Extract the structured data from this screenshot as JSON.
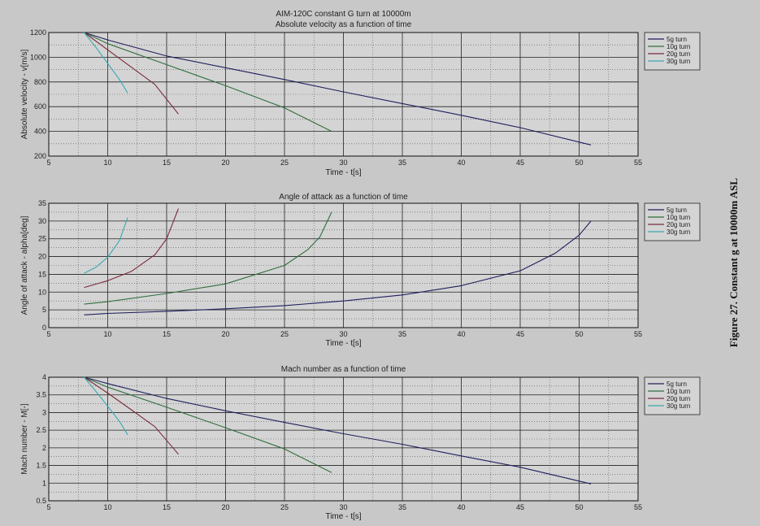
{
  "caption": "Figure 27. Constant g at 10000m ASL",
  "colors": {
    "background": "#c8c8c8",
    "series": [
      "#1f1f5f",
      "#2f6f3f",
      "#7a2a3a",
      "#3aa8b0"
    ]
  },
  "chart_data": [
    {
      "type": "line",
      "title": "AIM-120C constant G turn at 10000m",
      "subtitle": "Absolute velocity as a function of time",
      "xlabel": "Time - t[s]",
      "ylabel": "Absolute velocity - v[m/s]",
      "xlim": [
        5,
        55
      ],
      "ylim": [
        200,
        1200
      ],
      "xticks": [
        5,
        10,
        15,
        20,
        25,
        30,
        35,
        40,
        45,
        50,
        55
      ],
      "yticks": [
        200,
        400,
        600,
        800,
        1000,
        1200
      ],
      "grid": true,
      "legend_position": "outside-right",
      "series": [
        {
          "name": "5g turn",
          "x": [
            8,
            10,
            15,
            20,
            25,
            30,
            35,
            40,
            45,
            51
          ],
          "y": [
            1200,
            1140,
            1010,
            915,
            820,
            720,
            625,
            530,
            430,
            290
          ]
        },
        {
          "name": "10g turn",
          "x": [
            8,
            10,
            15,
            20,
            25,
            29
          ],
          "y": [
            1200,
            1110,
            940,
            770,
            590,
            400
          ]
        },
        {
          "name": "20g turn",
          "x": [
            8,
            10,
            12,
            14,
            16
          ],
          "y": [
            1200,
            1060,
            920,
            780,
            540
          ]
        },
        {
          "name": "30g turn",
          "x": [
            8,
            9,
            10,
            11,
            11.7
          ],
          "y": [
            1200,
            1080,
            950,
            820,
            710
          ]
        }
      ]
    },
    {
      "type": "line",
      "title": "Angle of attack as a function of time",
      "xlabel": "Time - t[s]",
      "ylabel": "Angle of attack - alpha[deg]",
      "xlim": [
        5,
        55
      ],
      "ylim": [
        0,
        35
      ],
      "xticks": [
        5,
        10,
        15,
        20,
        25,
        30,
        35,
        40,
        45,
        50,
        55
      ],
      "yticks": [
        0,
        5,
        10,
        15,
        20,
        25,
        30,
        35
      ],
      "grid": true,
      "legend_position": "outside-right",
      "series": [
        {
          "name": "5g turn",
          "x": [
            8,
            10,
            15,
            20,
            25,
            30,
            35,
            40,
            45,
            48,
            50,
            51
          ],
          "y": [
            3.6,
            4.0,
            4.6,
            5.3,
            6.2,
            7.5,
            9.2,
            11.8,
            16,
            21,
            26,
            30
          ]
        },
        {
          "name": "10g turn",
          "x": [
            8,
            10,
            15,
            20,
            25,
            27,
            28,
            29
          ],
          "y": [
            6.6,
            7.3,
            9.6,
            12.3,
            17.5,
            22,
            25.5,
            32.5
          ]
        },
        {
          "name": "20g turn",
          "x": [
            8,
            10,
            12,
            14,
            15,
            16
          ],
          "y": [
            11.3,
            13.2,
            15.8,
            20.5,
            25,
            33.5
          ]
        },
        {
          "name": "30g turn",
          "x": [
            8,
            9,
            10,
            11,
            11.7
          ],
          "y": [
            15.3,
            17,
            19.8,
            24.5,
            31
          ]
        }
      ]
    },
    {
      "type": "line",
      "title": "Mach number as a function of time",
      "xlabel": "Time - t[s]",
      "ylabel": "Mach number - M[-]",
      "xlim": [
        5,
        55
      ],
      "ylim": [
        0.5,
        4
      ],
      "xticks": [
        5,
        10,
        15,
        20,
        25,
        30,
        35,
        40,
        45,
        50,
        55
      ],
      "yticks": [
        0.5,
        1,
        1.5,
        2,
        2.5,
        3,
        3.5,
        4
      ],
      "grid": true,
      "legend_position": "outside-right",
      "series": [
        {
          "name": "5g turn",
          "x": [
            8,
            10,
            15,
            20,
            25,
            30,
            35,
            40,
            45,
            51
          ],
          "y": [
            4.0,
            3.82,
            3.4,
            3.05,
            2.72,
            2.4,
            2.1,
            1.77,
            1.45,
            0.98
          ]
        },
        {
          "name": "10g turn",
          "x": [
            8,
            10,
            15,
            20,
            25,
            29
          ],
          "y": [
            4.0,
            3.72,
            3.15,
            2.57,
            1.97,
            1.3
          ]
        },
        {
          "name": "20g turn",
          "x": [
            8,
            10,
            12,
            14,
            16
          ],
          "y": [
            4.0,
            3.55,
            3.08,
            2.6,
            1.82
          ]
        },
        {
          "name": "30g turn",
          "x": [
            8,
            9,
            10,
            11,
            11.7
          ],
          "y": [
            4.0,
            3.6,
            3.18,
            2.75,
            2.37
          ]
        }
      ]
    }
  ]
}
